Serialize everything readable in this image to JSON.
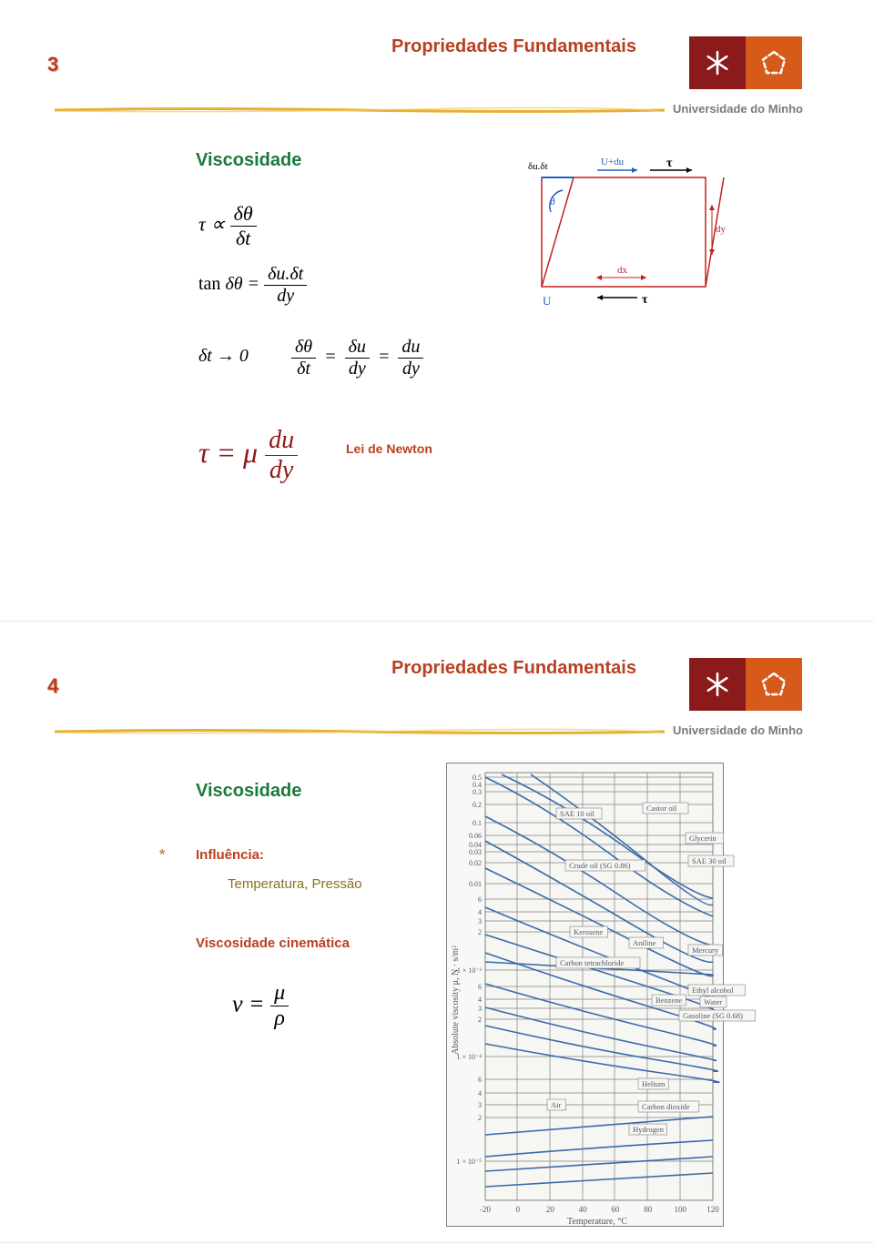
{
  "header": {
    "title": "Propriedades Fundamentais",
    "university": "Universidade do Minho",
    "logo": {
      "left_bg": "#8b1a1a",
      "right_bg": "#d65a1a",
      "icon_color": "#ffffff"
    },
    "rule_color": "#e8b030"
  },
  "slide3": {
    "page": "3",
    "section": "Viscosidade",
    "eq1_lhs": "τ ∝",
    "eq1_num": "δθ",
    "eq1_den": "δt",
    "eq2_lhs": "tan δθ =",
    "eq2_num": "δu.δt",
    "eq2_den": "dy",
    "eq3_lhs": "δt → 0",
    "eq3_a_num": "δθ",
    "eq3_a_den": "δt",
    "eq3_eq": "=",
    "eq3_b_num": "δu",
    "eq3_b_den": "dy",
    "eq3_c_num": "du",
    "eq3_c_den": "dy",
    "eq4_lhs": "τ = μ",
    "eq4_num": "du",
    "eq4_den": "dy",
    "eq4_label": "Lei de Newton",
    "diagram": {
      "label_top_left": "δu.δt",
      "label_top_right": "U+du",
      "label_tau": "τ",
      "label_theta": "θ",
      "label_dy": "dy",
      "label_dx": "dx",
      "label_U": "U",
      "label_tau2": "τ",
      "stroke_red": "#c02020",
      "stroke_blue": "#2060c0"
    }
  },
  "slide4": {
    "page": "4",
    "section": "Viscosidade",
    "bullet": "*",
    "influence_label": "Influência:",
    "influence_text": "Temperatura, Pressão",
    "kinematic_label": "Viscosidade cinemática",
    "eq_lhs": "ν =",
    "eq_num": "μ",
    "eq_den": "ρ",
    "chart": {
      "bg": "#f6f6f3",
      "grid_color": "#808080",
      "curve_color": "#3a6aa8",
      "text_color": "#556070",
      "x_label": "Temperature, °C",
      "y_label": "Absolute viscosity μ, N · s/m²",
      "x_ticks": [
        "-20",
        "0",
        "20",
        "40",
        "60",
        "80",
        "100",
        "120"
      ],
      "y_ticks": [
        "0.5",
        "0.4",
        "0.3",
        "0.2",
        "0.1",
        "0.06",
        "0.04",
        "0.03",
        "0.02",
        "0.01",
        "6",
        "4",
        "3",
        "2",
        "1 × 10⁻³",
        "6",
        "4",
        "3",
        "2",
        "1 × 10⁻⁴",
        "6",
        "4",
        "3",
        "2",
        "1 × 10⁻⁵"
      ],
      "series": [
        {
          "label": "SAE 10 oil",
          "x": 80,
          "y": 48
        },
        {
          "label": "Castor oil",
          "x": 175,
          "y": 42
        },
        {
          "label": "Glycerin",
          "x": 222,
          "y": 75
        },
        {
          "label": "Crude oil (SG 0.86)",
          "x": 90,
          "y": 105
        },
        {
          "label": "SAE 30 oil",
          "x": 225,
          "y": 100
        },
        {
          "label": "Kerosene",
          "x": 95,
          "y": 178
        },
        {
          "label": "Aniline",
          "x": 160,
          "y": 190
        },
        {
          "label": "Mercury",
          "x": 225,
          "y": 198
        },
        {
          "label": "Carbon tetrachloride",
          "x": 80,
          "y": 212
        },
        {
          "label": "Ethyl alcohol",
          "x": 225,
          "y": 242
        },
        {
          "label": "Benzene",
          "x": 185,
          "y": 253
        },
        {
          "label": "Water",
          "x": 238,
          "y": 255
        },
        {
          "label": "Gasoline (SG 0.68)",
          "x": 215,
          "y": 270
        },
        {
          "label": "Helium",
          "x": 170,
          "y": 345
        },
        {
          "label": "Air",
          "x": 70,
          "y": 368
        },
        {
          "label": "Carbon dioxide",
          "x": 170,
          "y": 370
        },
        {
          "label": "Hydrogen",
          "x": 160,
          "y": 395
        }
      ]
    }
  }
}
